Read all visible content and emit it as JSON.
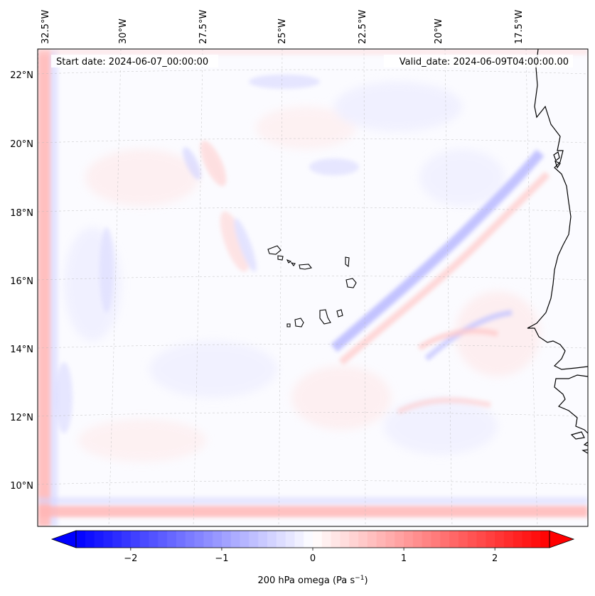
{
  "header": {
    "start_date": "Start date: 2024-06-07_00:00:00",
    "valid_date": "Valid_date: 2024-06-09T04:00:00.00"
  },
  "lon_ticks": [
    "32.5°W",
    "30°W",
    "27.5°W",
    "25°W",
    "22.5°W",
    "20°W",
    "17.5°W"
  ],
  "lat_ticks": [
    "22°N",
    "20°N",
    "18°N",
    "16°N",
    "14°N",
    "12°N",
    "10°N"
  ],
  "colorbar": {
    "label_prefix": "200 hPa omega (Pa s",
    "label_exp": "−1",
    "label_suffix": ")",
    "ticks": [
      "−2",
      "−1",
      "0",
      "1",
      "2"
    ],
    "min": -2.6,
    "max": 2.6,
    "tick_values": [
      -2,
      -1,
      0,
      1,
      2
    ],
    "colormap": "bwr",
    "low_color": "#0000ff",
    "mid_color": "#ffffff",
    "high_color": "#ff0000"
  },
  "islands": [
    "Cape Verde Islands"
  ],
  "coastline": [
    "West African coast (Mauritania, Senegal, Gambia, Guinea-Bissau)"
  ]
}
